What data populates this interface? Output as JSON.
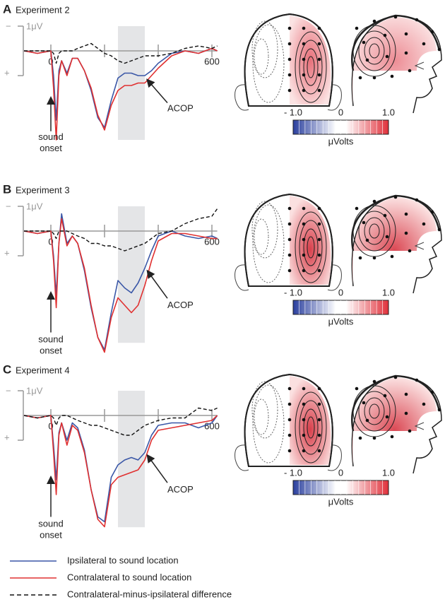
{
  "chart_data": [
    {
      "type": "line",
      "label": "A",
      "title": "Experiment 2",
      "x": [
        -100,
        -50,
        0,
        10,
        20,
        30,
        40,
        60,
        80,
        100,
        125,
        150,
        175,
        200,
        225,
        250,
        275,
        300,
        325,
        350,
        375,
        400,
        450,
        500,
        550,
        600,
        620
      ],
      "xlim": [
        -100,
        620
      ],
      "xticks": [
        0,
        600
      ],
      "minor_xticks": [
        200,
        400
      ],
      "ylim": [
        -1,
        4
      ],
      "y_inverted": true,
      "window": [
        250,
        350
      ],
      "scale_bar": {
        "label": "1μV",
        "value": 1
      },
      "polarity_labels": [
        "−",
        "+"
      ],
      "annotations": {
        "onset": [
          "sound",
          "onset"
        ],
        "acop": "ACOP"
      },
      "colorbar": {
        "label": "μVolts",
        "lim": [
          -1,
          1
        ],
        "ticks": [
          {
            "value": -1,
            "label": "- 1.0"
          },
          0,
          {
            "value": 1,
            "label": "1.0"
          }
        ]
      },
      "series": [
        {
          "name": "Ipsilateral to sound location",
          "color": "#3a57a7",
          "dash": false,
          "values": [
            0,
            0.1,
            0,
            1.0,
            2.8,
            0.8,
            0.4,
            0.9,
            0.3,
            0.3,
            0.8,
            1.6,
            2.7,
            3.1,
            2.0,
            1.1,
            0.9,
            0.9,
            1.0,
            1.0,
            0.8,
            0.5,
            0.1,
            0,
            0.1,
            -0.1,
            0
          ]
        },
        {
          "name": "Contralateral to sound location",
          "color": "#e03030",
          "dash": false,
          "values": [
            0,
            0.1,
            0,
            1.5,
            3.6,
            1.0,
            0.4,
            1.0,
            0.3,
            0.3,
            0.8,
            1.5,
            2.6,
            3.2,
            2.2,
            1.6,
            1.4,
            1.4,
            1.3,
            1.3,
            1.0,
            0.7,
            0.2,
            0,
            0.1,
            -0.1,
            0
          ]
        },
        {
          "name": "Contralateral-minus-ipsilateral difference",
          "color": "#111111",
          "dash": true,
          "values": [
            0,
            0,
            0,
            0.1,
            0.5,
            0.1,
            0,
            0,
            0,
            -0.1,
            -0.2,
            -0.3,
            -0.1,
            0.1,
            0.2,
            0.4,
            0.5,
            0.4,
            0.3,
            0.2,
            0.2,
            0.2,
            0.1,
            -0.1,
            -0.2,
            -0.1,
            -0.2
          ]
        }
      ]
    },
    {
      "type": "line",
      "label": "B",
      "title": "Experiment 3",
      "x": [
        -100,
        -50,
        0,
        10,
        20,
        30,
        40,
        60,
        80,
        100,
        125,
        150,
        175,
        200,
        225,
        250,
        275,
        300,
        325,
        350,
        375,
        400,
        450,
        500,
        550,
        600,
        620
      ],
      "xlim": [
        -100,
        620
      ],
      "xticks": [
        0,
        600
      ],
      "minor_xticks": [
        200,
        400
      ],
      "ylim": [
        -1,
        5
      ],
      "y_inverted": true,
      "window": [
        250,
        350
      ],
      "scale_bar": {
        "label": "1μV",
        "value": 1
      },
      "polarity_labels": [
        "−",
        "+"
      ],
      "annotations": {
        "onset": [
          "sound",
          "onset"
        ],
        "acop": "ACOP"
      },
      "colorbar": {
        "label": "μVolts",
        "lim": [
          -1,
          1
        ],
        "ticks": [
          {
            "value": -1,
            "label": "- 1.0"
          },
          0,
          {
            "value": 1,
            "label": "1.0"
          }
        ]
      },
      "series": [
        {
          "color": "#3a57a7",
          "dash": false,
          "values": [
            0,
            0.1,
            0,
            1.0,
            2.6,
            0.5,
            -0.7,
            0.5,
            0.2,
            0.5,
            1.6,
            3.1,
            4.3,
            4.8,
            3.3,
            2.0,
            2.3,
            2.5,
            2.1,
            1.5,
            0.8,
            0.2,
            0,
            0.2,
            0.3,
            0.2,
            0.3
          ]
        },
        {
          "color": "#e03030",
          "dash": false,
          "values": [
            0,
            0.1,
            0,
            1.2,
            3.1,
            0.5,
            -0.5,
            0.6,
            0.2,
            0.5,
            1.5,
            3.0,
            4.3,
            4.9,
            3.5,
            2.7,
            3.0,
            3.3,
            3.0,
            2.2,
            1.2,
            0.4,
            0.1,
            0.1,
            0.2,
            0.3,
            0.3
          ]
        },
        {
          "color": "#111111",
          "dash": true,
          "values": [
            0,
            0,
            0,
            0.1,
            0.3,
            0,
            0,
            0,
            0.1,
            0.2,
            0.3,
            0.5,
            0.5,
            0.6,
            0.6,
            0.7,
            0.8,
            0.7,
            0.6,
            0.5,
            0.3,
            0.1,
            0,
            -0.3,
            -0.5,
            -0.6,
            -0.9
          ]
        }
      ]
    },
    {
      "type": "line",
      "label": "C",
      "title": "Experiment 4",
      "x": [
        -100,
        -50,
        0,
        10,
        20,
        30,
        40,
        60,
        80,
        100,
        125,
        150,
        175,
        200,
        225,
        250,
        275,
        300,
        325,
        350,
        375,
        400,
        450,
        500,
        550,
        600,
        620
      ],
      "xlim": [
        -100,
        620
      ],
      "xticks": [
        0,
        600
      ],
      "minor_xticks": [
        200,
        400
      ],
      "ylim": [
        -1,
        5
      ],
      "y_inverted": true,
      "window": [
        250,
        350
      ],
      "scale_bar": {
        "label": "1μV",
        "value": 1
      },
      "polarity_labels": [
        "−",
        "+"
      ],
      "annotations": {
        "onset": [
          "sound",
          "onset"
        ],
        "acop": "ACOP"
      },
      "colorbar": {
        "label": "μVolts",
        "lim": [
          -1,
          1
        ],
        "ticks": [
          {
            "value": -1,
            "label": "- 1.0"
          },
          0,
          {
            "value": 1,
            "label": "1.0"
          }
        ]
      },
      "series": [
        {
          "color": "#3a57a7",
          "dash": false,
          "values": [
            0,
            0.1,
            0,
            1.2,
            2.6,
            0.7,
            0.3,
            1.0,
            0.3,
            0.5,
            1.4,
            3.0,
            4.1,
            4.3,
            2.5,
            2.0,
            1.8,
            1.7,
            1.8,
            1.5,
            0.8,
            0.4,
            0.3,
            0.3,
            0.5,
            0.3,
            0
          ]
        },
        {
          "color": "#e03030",
          "dash": false,
          "values": [
            0,
            0.1,
            0,
            1.5,
            3.2,
            0.8,
            0.3,
            1.2,
            0.4,
            0.6,
            1.5,
            3.0,
            4.2,
            4.5,
            2.8,
            2.5,
            2.4,
            2.3,
            2.2,
            1.8,
            1.0,
            0.6,
            0.5,
            0.4,
            0.3,
            0.2,
            0
          ]
        },
        {
          "color": "#111111",
          "dash": true,
          "values": [
            0,
            0.1,
            0,
            0.1,
            0.4,
            0.1,
            0,
            0,
            0.1,
            0.2,
            0.3,
            0.4,
            0.4,
            0.5,
            0.6,
            0.7,
            0.8,
            0.8,
            0.6,
            0.4,
            0.3,
            0.2,
            0.1,
            0.1,
            -0.3,
            -0.2,
            -0.3
          ]
        }
      ]
    }
  ]
}
